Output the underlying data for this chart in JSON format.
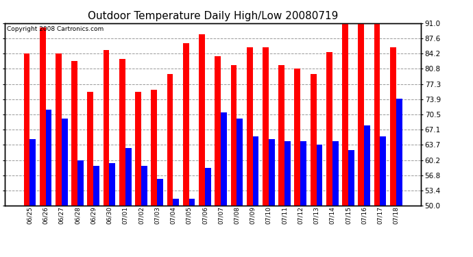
{
  "title": "Outdoor Temperature Daily High/Low 20080719",
  "copyright": "Copyright 2008 Cartronics.com",
  "labels": [
    "06/25",
    "06/26",
    "06/27",
    "06/28",
    "06/29",
    "06/30",
    "07/01",
    "07/02",
    "07/03",
    "07/04",
    "07/05",
    "07/06",
    "07/07",
    "07/08",
    "07/09",
    "07/10",
    "07/11",
    "07/12",
    "07/13",
    "07/14",
    "07/15",
    "07/16",
    "07/17",
    "07/18"
  ],
  "highs": [
    84.2,
    90.0,
    84.2,
    82.5,
    75.5,
    85.0,
    83.0,
    75.5,
    76.0,
    79.5,
    86.5,
    88.5,
    83.5,
    81.5,
    85.5,
    85.5,
    81.5,
    80.8,
    79.5,
    84.5,
    90.8,
    91.0,
    91.0,
    85.5
  ],
  "lows": [
    65.0,
    71.5,
    69.5,
    60.2,
    59.0,
    59.5,
    63.0,
    59.0,
    56.0,
    51.5,
    51.5,
    58.5,
    71.0,
    69.5,
    65.5,
    65.0,
    64.5,
    64.5,
    63.7,
    64.5,
    62.5,
    68.0,
    65.5,
    74.0
  ],
  "high_color": "#FF0000",
  "low_color": "#0000FF",
  "bg_color": "#FFFFFF",
  "grid_color": "#999999",
  "ymin": 50.0,
  "ymax": 91.0,
  "yticks": [
    50.0,
    53.4,
    56.8,
    60.2,
    63.7,
    67.1,
    70.5,
    73.9,
    77.3,
    80.8,
    84.2,
    87.6,
    91.0
  ],
  "title_fontsize": 11,
  "bar_width": 0.38
}
